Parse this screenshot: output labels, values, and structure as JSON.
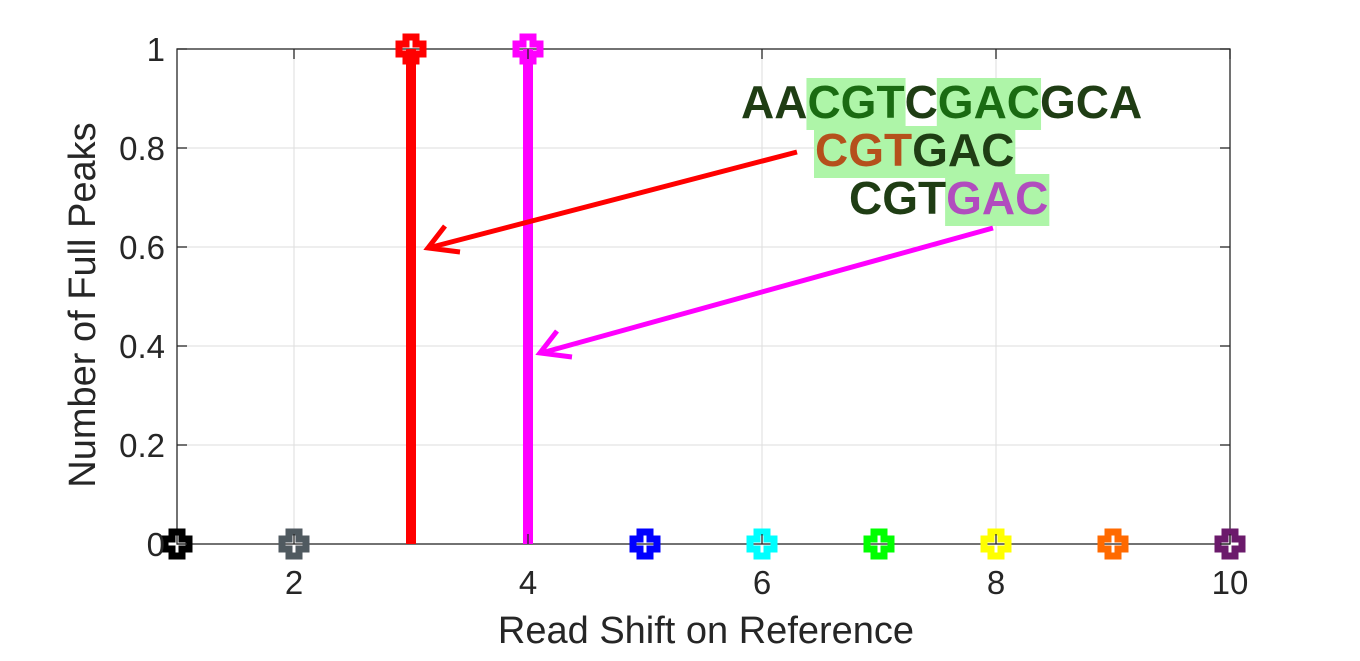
{
  "chart_data": {
    "type": "stem",
    "title": "",
    "xlabel": "Read Shift on Reference",
    "ylabel": "Number of Full Peaks",
    "xlim": [
      1,
      10
    ],
    "ylim": [
      0,
      1
    ],
    "x_ticks": [
      "2",
      "4",
      "6",
      "8",
      "10"
    ],
    "y_ticks": [
      "0",
      "0.2",
      "0.4",
      "0.6",
      "0.8",
      "1"
    ],
    "grid": true,
    "points": [
      {
        "x": 1,
        "y": 0,
        "color": "#000000"
      },
      {
        "x": 2,
        "y": 0,
        "color": "#505a60"
      },
      {
        "x": 3,
        "y": 1,
        "color": "#ff0000"
      },
      {
        "x": 4,
        "y": 1,
        "color": "#ff00ff"
      },
      {
        "x": 5,
        "y": 0,
        "color": "#0000ff"
      },
      {
        "x": 6,
        "y": 0,
        "color": "#00ffff"
      },
      {
        "x": 7,
        "y": 0,
        "color": "#00ff00"
      },
      {
        "x": 8,
        "y": 0,
        "color": "#ffff00"
      },
      {
        "x": 9,
        "y": 0,
        "color": "#ff6a00"
      },
      {
        "x": 10,
        "y": 0,
        "color": "#6b1a6b"
      }
    ],
    "annotations": {
      "reference_sequence": [
        {
          "text": "AA",
          "color": "#1f3d14",
          "highlight": false
        },
        {
          "text": "CGT",
          "color": "#1a6b12",
          "highlight": true
        },
        {
          "text": "C",
          "color": "#1f3d14",
          "highlight": false
        },
        {
          "text": "GAC",
          "color": "#1a6b12",
          "highlight": true
        },
        {
          "text": "GCA",
          "color": "#1f3d14",
          "highlight": false
        }
      ],
      "read_1": [
        {
          "text": "CGT",
          "color": "#b5501c",
          "highlight": true
        },
        {
          "text": "GAC",
          "color": "#1f3d14",
          "highlight": true
        }
      ],
      "read_2": [
        {
          "text": "CGT",
          "color": "#1f3d14",
          "highlight": false
        },
        {
          "text": "GAC",
          "color": "#b14cbe",
          "highlight": true
        }
      ],
      "highlight_color": "#aef5a8",
      "arrow_colors": [
        "#ff0000",
        "#ff00ff"
      ]
    }
  }
}
